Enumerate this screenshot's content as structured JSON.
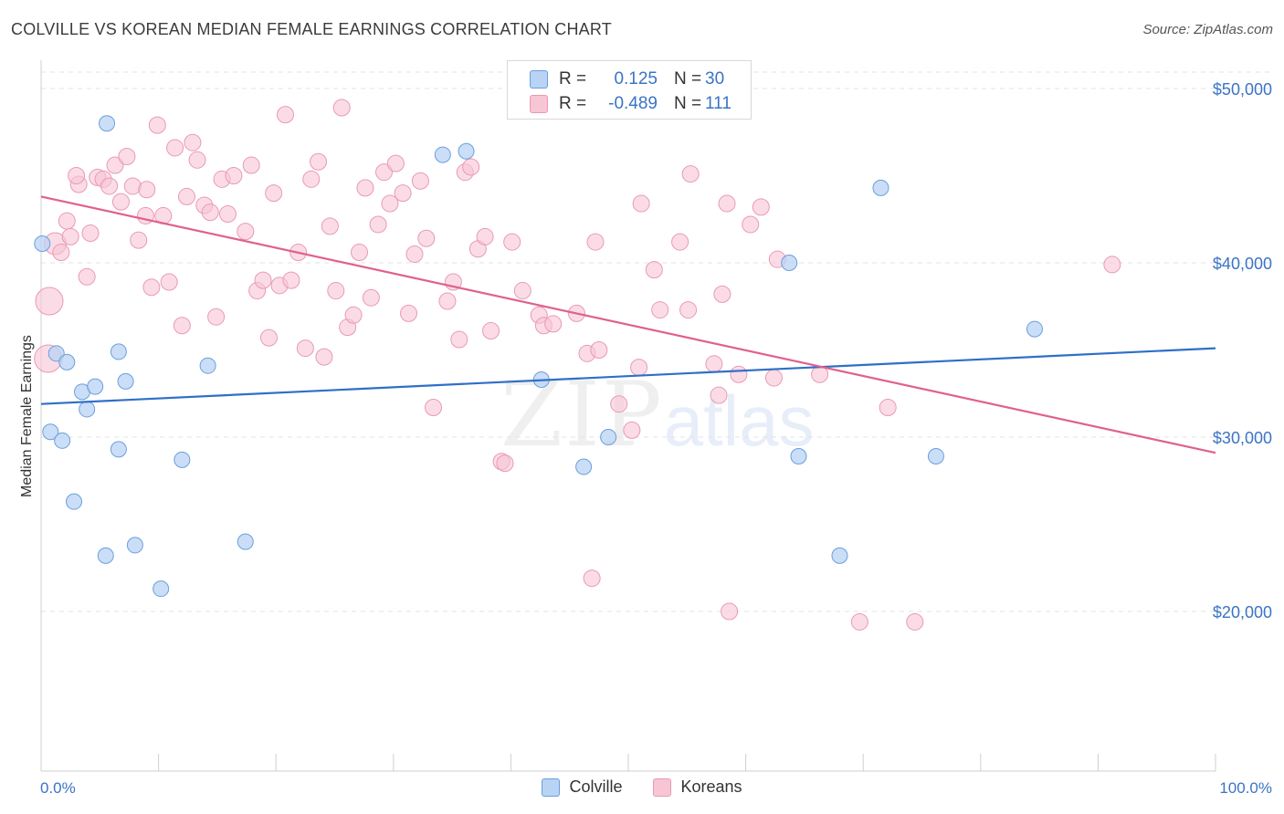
{
  "title": "COLVILLE VS KOREAN MEDIAN FEMALE EARNINGS CORRELATION CHART",
  "source": "Source: ZipAtlas.com",
  "watermark": {
    "zip": "ZIP",
    "atlas": "atlas"
  },
  "legend_top": [
    {
      "r_label": "R =",
      "r_value": "0.125",
      "n_label": "N =",
      "n_value": "30"
    },
    {
      "r_label": "R =",
      "r_value": "-0.489",
      "n_label": "N =",
      "n_value": "111"
    }
  ],
  "legend_bottom": [
    "Colville",
    "Koreans"
  ],
  "colors": {
    "colville_fill": "#b8d3f4",
    "colville_stroke": "#6b9fdc",
    "colville_line": "#2f6fc9",
    "koreans_fill": "#f8c5d5",
    "koreans_stroke": "#e99ab3",
    "koreans_line": "#e0608e",
    "grid": "#e3e3e3",
    "tick_text": "#3a74c5"
  },
  "chart_data": {
    "type": "scatter",
    "title": "COLVILLE VS KOREAN MEDIAN FEMALE EARNINGS CORRELATION CHART",
    "xlabel": "",
    "ylabel": "Median Female Earnings",
    "xlim": [
      0,
      100
    ],
    "ylim": [
      10000,
      51000
    ],
    "x_tick_labels": [
      "0.0%",
      "100.0%"
    ],
    "y_ticks": [
      20000,
      30000,
      40000,
      50000
    ],
    "y_tick_labels": [
      "$20,000",
      "$30,000",
      "$40,000",
      "$50,000"
    ],
    "grid": true,
    "legend_position": "top-center",
    "series": [
      {
        "name": "Colville",
        "r": 0.125,
        "n": 30,
        "trend": {
          "x": [
            0,
            100
          ],
          "y": [
            31900,
            35100
          ]
        },
        "points": [
          [
            0.1,
            41100
          ],
          [
            0.8,
            30300
          ],
          [
            1.3,
            34800
          ],
          [
            1.8,
            29800
          ],
          [
            2.2,
            34300
          ],
          [
            2.8,
            26300
          ],
          [
            3.5,
            32600
          ],
          [
            3.9,
            31600
          ],
          [
            4.6,
            32900
          ],
          [
            5.5,
            23200
          ],
          [
            5.6,
            48000
          ],
          [
            6.6,
            34900
          ],
          [
            6.6,
            29300
          ],
          [
            7.2,
            33200
          ],
          [
            8.0,
            23800
          ],
          [
            10.2,
            21300
          ],
          [
            12.0,
            28700
          ],
          [
            14.2,
            34100
          ],
          [
            17.4,
            24000
          ],
          [
            34.2,
            46200
          ],
          [
            36.2,
            46400
          ],
          [
            42.6,
            33300
          ],
          [
            46.2,
            28300
          ],
          [
            48.3,
            30000
          ],
          [
            63.7,
            40000
          ],
          [
            64.5,
            28900
          ],
          [
            68.0,
            23200
          ],
          [
            71.5,
            44300
          ],
          [
            76.2,
            28900
          ],
          [
            84.6,
            36200
          ]
        ]
      },
      {
        "name": "Koreans",
        "r": -0.489,
        "n": 111,
        "trend": {
          "x": [
            0,
            100
          ],
          "y": [
            43800,
            29100
          ]
        },
        "points": [
          [
            0.6,
            34500
          ],
          [
            0.7,
            37800
          ],
          [
            1.2,
            41100
          ],
          [
            1.7,
            40600
          ],
          [
            2.2,
            42400
          ],
          [
            2.5,
            41500
          ],
          [
            3.2,
            44500
          ],
          [
            3.9,
            39200
          ],
          [
            4.2,
            41700
          ],
          [
            4.8,
            44900
          ],
          [
            5.3,
            44800
          ],
          [
            5.8,
            44400
          ],
          [
            6.3,
            45600
          ],
          [
            6.8,
            43500
          ],
          [
            7.3,
            46100
          ],
          [
            7.8,
            44400
          ],
          [
            8.3,
            41300
          ],
          [
            8.9,
            42700
          ],
          [
            9.4,
            38600
          ],
          [
            9.9,
            47900
          ],
          [
            10.4,
            42700
          ],
          [
            10.9,
            38900
          ],
          [
            11.4,
            46600
          ],
          [
            12.0,
            36400
          ],
          [
            12.4,
            43800
          ],
          [
            12.9,
            46900
          ],
          [
            13.3,
            45900
          ],
          [
            13.9,
            43300
          ],
          [
            14.4,
            42900
          ],
          [
            14.9,
            36900
          ],
          [
            15.4,
            44800
          ],
          [
            15.9,
            42800
          ],
          [
            16.4,
            45000
          ],
          [
            17.4,
            41800
          ],
          [
            17.9,
            45600
          ],
          [
            18.4,
            38400
          ],
          [
            18.9,
            39000
          ],
          [
            19.4,
            35700
          ],
          [
            19.8,
            44000
          ],
          [
            20.3,
            38700
          ],
          [
            20.8,
            48500
          ],
          [
            21.3,
            39000
          ],
          [
            21.9,
            40600
          ],
          [
            22.5,
            35100
          ],
          [
            23.0,
            44800
          ],
          [
            23.6,
            45800
          ],
          [
            24.1,
            34600
          ],
          [
            24.6,
            42100
          ],
          [
            25.1,
            38400
          ],
          [
            25.6,
            48900
          ],
          [
            26.1,
            36300
          ],
          [
            26.6,
            37000
          ],
          [
            27.1,
            40600
          ],
          [
            27.6,
            44300
          ],
          [
            28.1,
            38000
          ],
          [
            28.7,
            42200
          ],
          [
            29.2,
            45200
          ],
          [
            29.7,
            43400
          ],
          [
            30.2,
            45700
          ],
          [
            30.8,
            44000
          ],
          [
            31.3,
            37100
          ],
          [
            31.8,
            40500
          ],
          [
            32.3,
            44700
          ],
          [
            32.8,
            41400
          ],
          [
            33.4,
            31700
          ],
          [
            34.6,
            37800
          ],
          [
            35.1,
            38900
          ],
          [
            35.6,
            35600
          ],
          [
            36.1,
            45200
          ],
          [
            36.6,
            45500
          ],
          [
            37.2,
            40800
          ],
          [
            37.8,
            41500
          ],
          [
            38.3,
            36100
          ],
          [
            39.2,
            28600
          ],
          [
            39.5,
            28500
          ],
          [
            40.1,
            41200
          ],
          [
            41.0,
            38400
          ],
          [
            42.4,
            37000
          ],
          [
            42.8,
            36400
          ],
          [
            43.6,
            36500
          ],
          [
            45.6,
            37100
          ],
          [
            46.9,
            21900
          ],
          [
            46.5,
            34800
          ],
          [
            47.2,
            41200
          ],
          [
            47.5,
            35000
          ],
          [
            49.2,
            31900
          ],
          [
            50.3,
            30400
          ],
          [
            50.9,
            34000
          ],
          [
            51.1,
            43400
          ],
          [
            52.2,
            39600
          ],
          [
            52.7,
            37300
          ],
          [
            54.4,
            41200
          ],
          [
            55.1,
            37300
          ],
          [
            55.3,
            45100
          ],
          [
            57.3,
            34200
          ],
          [
            57.7,
            32400
          ],
          [
            58.0,
            38200
          ],
          [
            58.4,
            43400
          ],
          [
            58.6,
            20000
          ],
          [
            59.4,
            33600
          ],
          [
            60.4,
            42200
          ],
          [
            61.3,
            43200
          ],
          [
            62.4,
            33400
          ],
          [
            62.7,
            40200
          ],
          [
            66.3,
            33600
          ],
          [
            69.7,
            19400
          ],
          [
            72.1,
            31700
          ],
          [
            74.4,
            19400
          ],
          [
            91.2,
            39900
          ],
          [
            3.0,
            45000
          ],
          [
            9.0,
            44200
          ]
        ]
      }
    ]
  }
}
